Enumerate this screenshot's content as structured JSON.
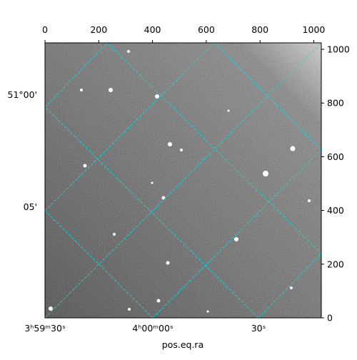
{
  "chart_data": {
    "type": "image",
    "xlabel": "pos.eq.ra",
    "xlim": [
      0,
      1028
    ],
    "xticks": [
      0,
      200,
      400,
      600,
      800,
      1000
    ],
    "ylim": [
      0,
      1024
    ],
    "yticks": [
      0,
      200,
      400,
      600,
      800,
      1000
    ],
    "ra_labels": [
      "3ʰ59ᵐ30ˢ",
      "4ʰ00ᵐ00ˢ",
      "30ˢ"
    ],
    "dec_labels": [
      "51°00'",
      "05'"
    ],
    "grid_color": "#00e5e5"
  }
}
